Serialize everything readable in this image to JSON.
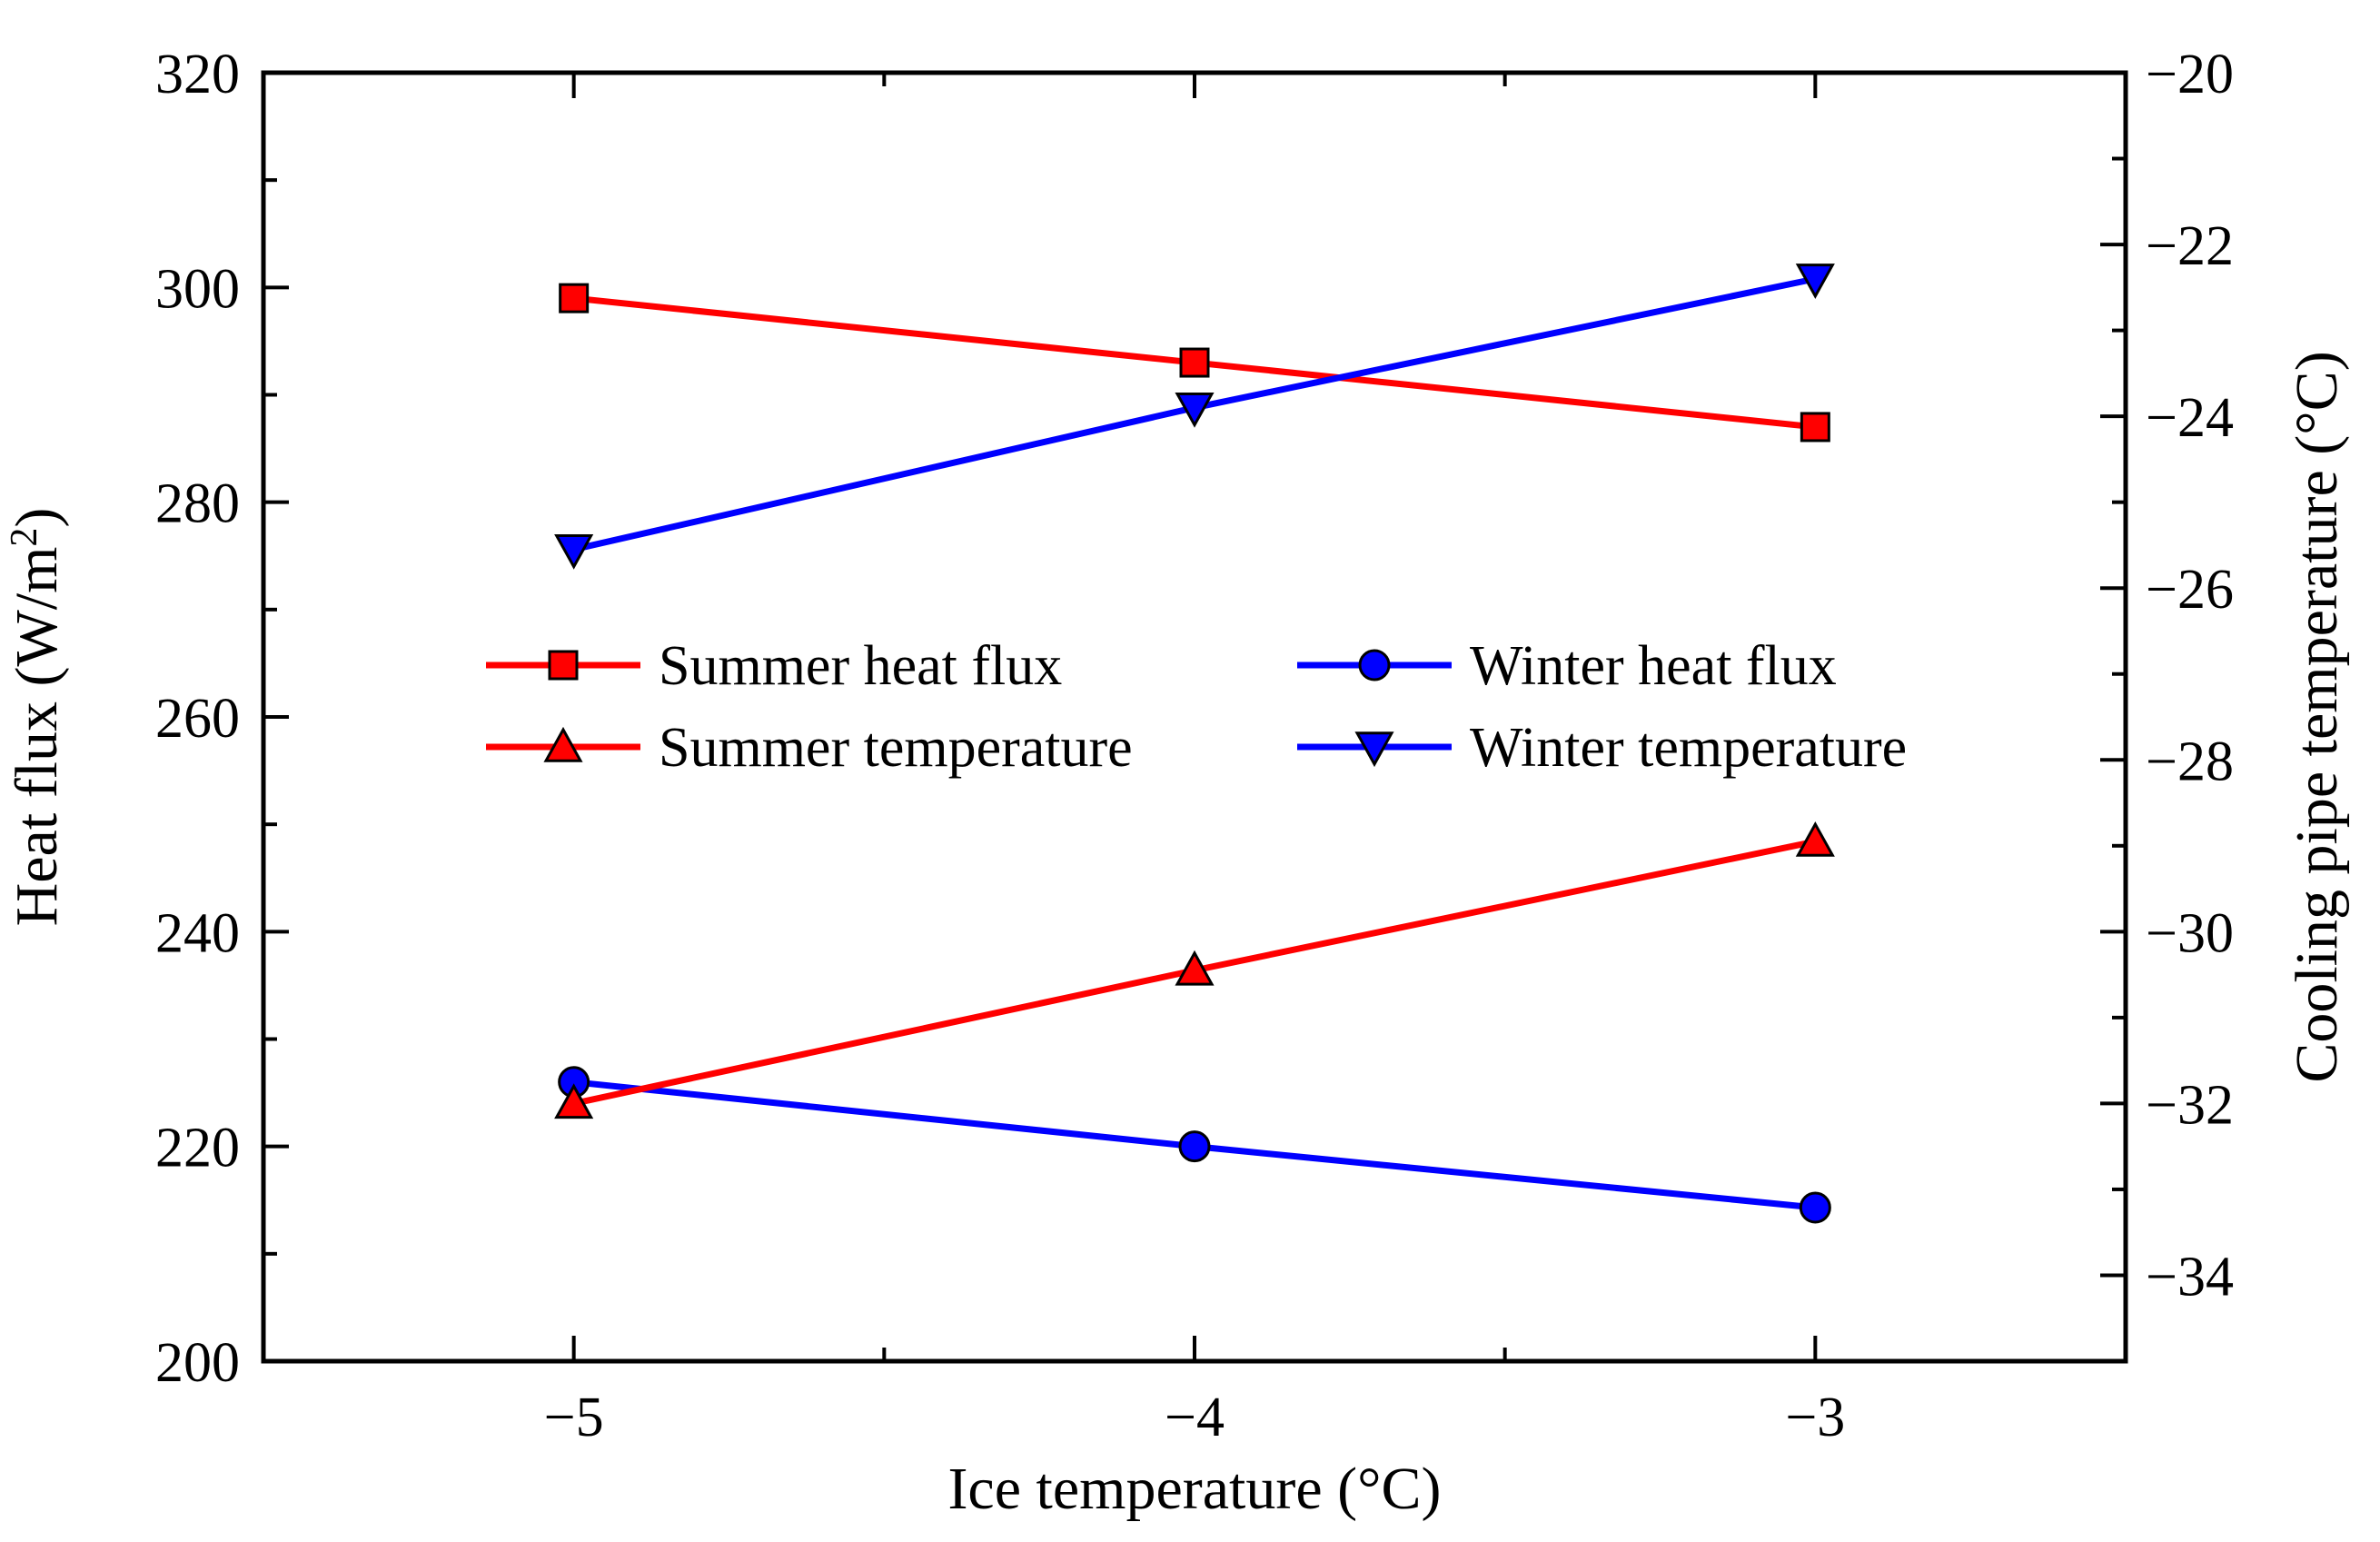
{
  "chart_data": {
    "type": "line",
    "title": "",
    "x": [
      -5,
      -4,
      -3
    ],
    "xlabel": "Ice temperature (°C)",
    "xlim": [
      -5.5,
      -2.5
    ],
    "xticks": [
      -5,
      -4,
      -3
    ],
    "xtick_labels": [
      "−5",
      "−4",
      "−3"
    ],
    "ylabel_left": "Heat flux (W/m",
    "ylabel_left_sup": "2",
    "ylabel_left_end": ")",
    "ylim_left": [
      200,
      320
    ],
    "yticks_left": [
      200,
      220,
      240,
      260,
      280,
      300,
      320
    ],
    "ytick_labels_left": [
      "200",
      "220",
      "240",
      "260",
      "280",
      "300",
      "320"
    ],
    "ylabel_right": "Cooling pipe temperature (°C)",
    "ylim_right": [
      -35,
      -20
    ],
    "yticks_right": [
      -34,
      -32,
      -30,
      -28,
      -26,
      -24,
      -22,
      -20
    ],
    "ytick_labels_right": [
      "−34",
      "−32",
      "−30",
      "−28",
      "−26",
      "−24",
      "−22",
      "−20"
    ],
    "legend_position": "center",
    "series": [
      {
        "name": "Summer heat flux",
        "axis": "left",
        "marker": "square",
        "color": "#ff0000",
        "values": [
          299,
          293,
          287
        ]
      },
      {
        "name": "Winter heat flux",
        "axis": "left",
        "marker": "circle",
        "color": "#0000ff",
        "values": [
          226,
          220,
          214.3
        ]
      },
      {
        "name": "Summer temperature",
        "axis": "right",
        "marker": "triangle-up",
        "color": "#ff0000",
        "values": [
          -32,
          -30.45,
          -28.95
        ]
      },
      {
        "name": "Winter temperature",
        "axis": "right",
        "marker": "triangle-down",
        "color": "#0000ff",
        "values": [
          -25.55,
          -23.9,
          -22.4
        ]
      }
    ]
  }
}
